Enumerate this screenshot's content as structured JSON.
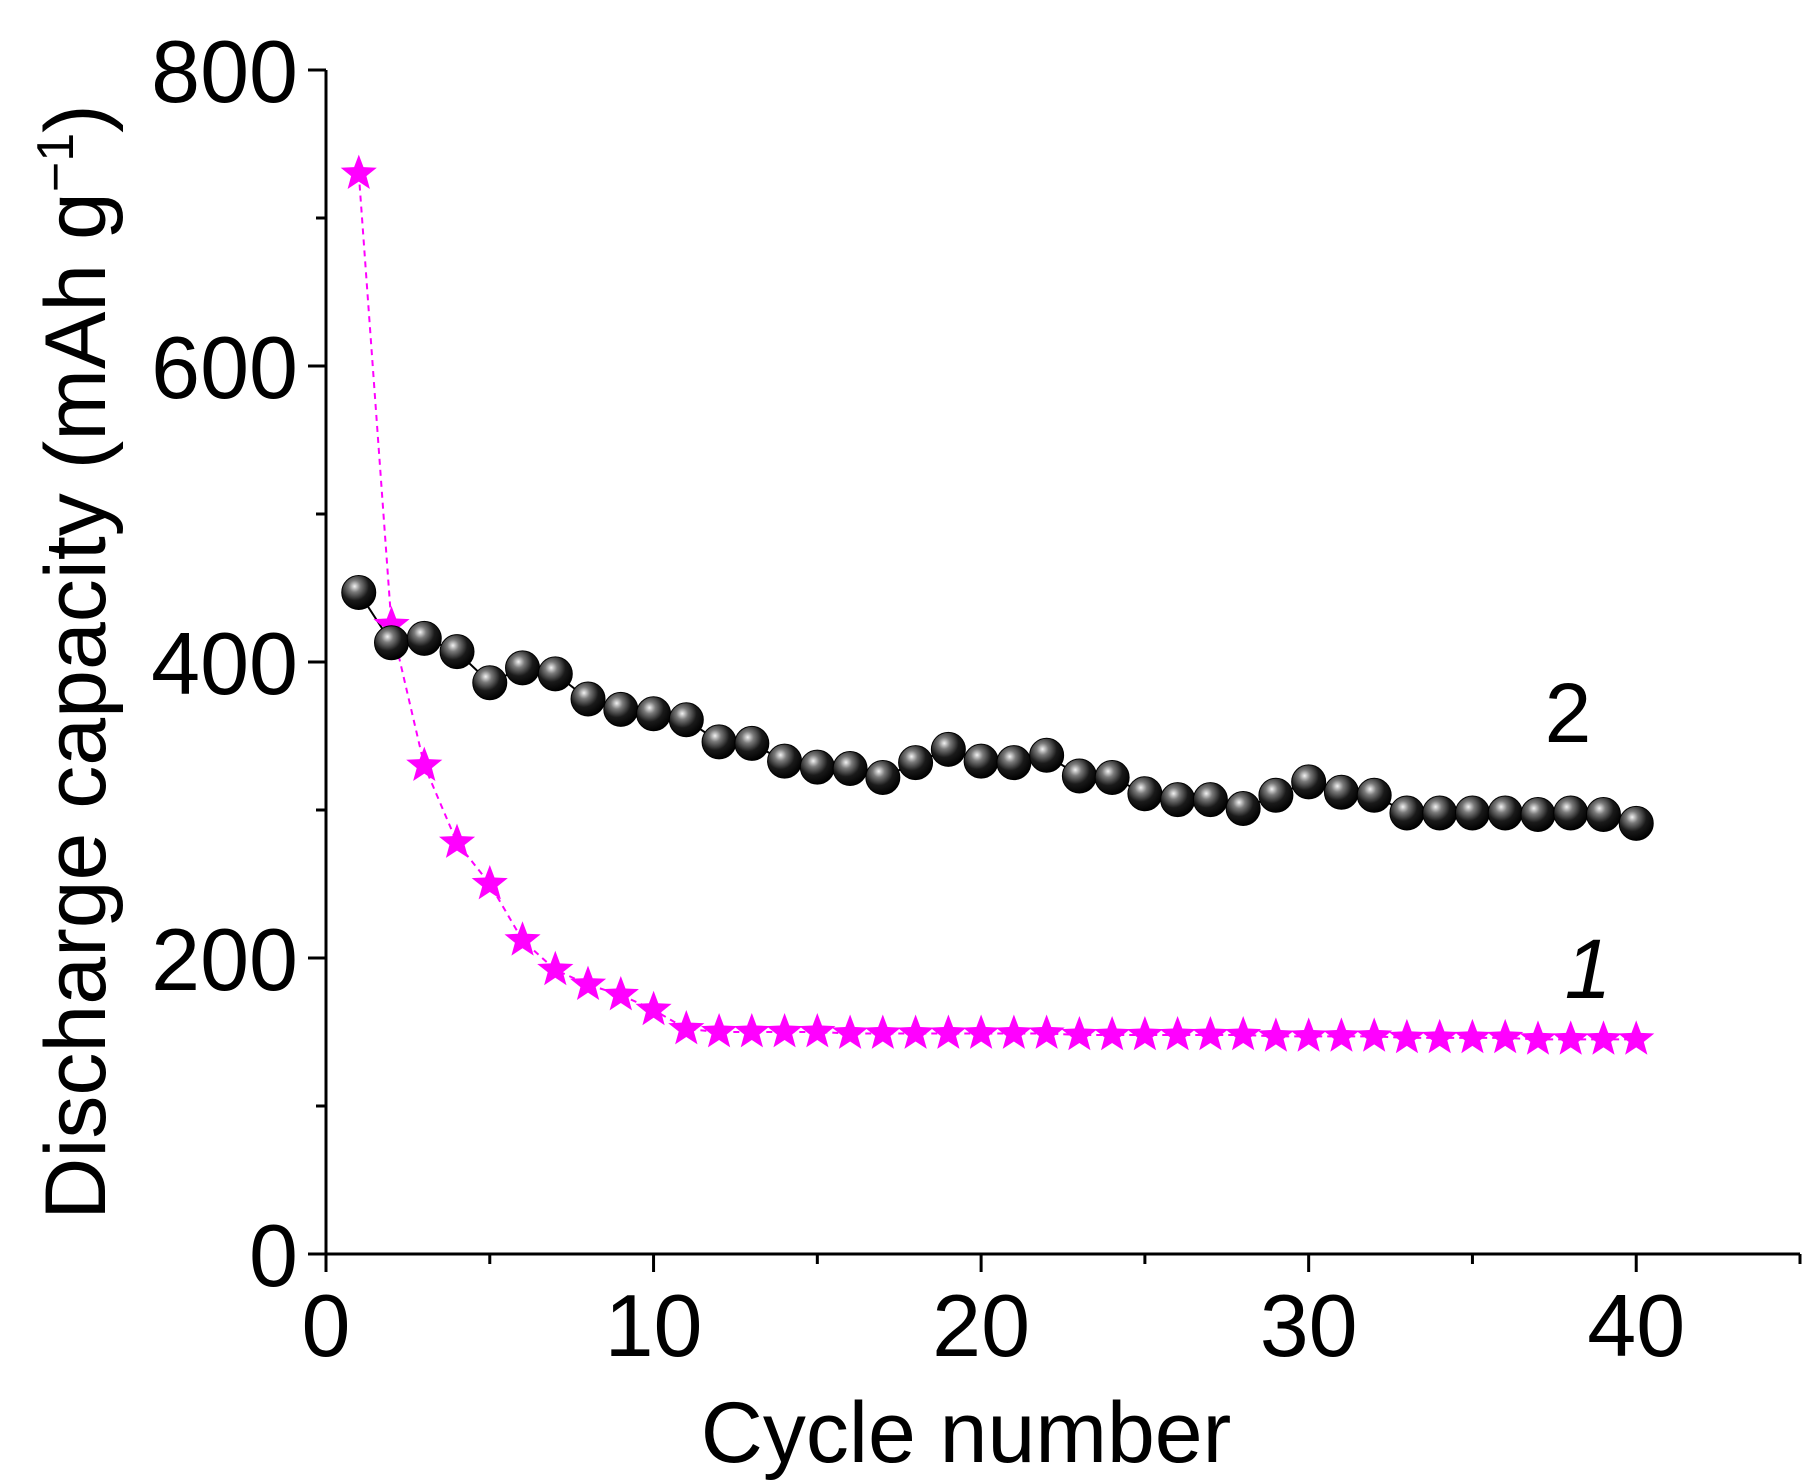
{
  "chart_data": {
    "type": "scatter",
    "title": "",
    "xlabel": "Cycle number",
    "ylabel": "Discharge capacity (mAh g",
    "ylabel_sup": "−1",
    "ylabel_close": ")",
    "xlim": [
      0,
      45
    ],
    "ylim": [
      0,
      800
    ],
    "x_ticks": [
      0,
      10,
      20,
      30,
      40
    ],
    "y_ticks": [
      0,
      200,
      400,
      600,
      800
    ],
    "grid": false,
    "series": [
      {
        "label": "1",
        "label_italic": true,
        "marker": "star",
        "color": "#ff00ff",
        "x": [
          1,
          2,
          3,
          4,
          5,
          6,
          7,
          8,
          9,
          10,
          11,
          12,
          13,
          14,
          15,
          16,
          17,
          18,
          19,
          20,
          21,
          22,
          23,
          24,
          25,
          26,
          27,
          28,
          29,
          30,
          31,
          32,
          33,
          34,
          35,
          36,
          37,
          38,
          39,
          40
        ],
        "values": [
          730,
          425,
          330,
          278,
          250,
          212,
          192,
          182,
          175,
          165,
          152,
          150,
          150,
          150,
          150,
          149,
          149,
          149,
          149,
          149,
          149,
          149,
          148,
          148,
          148,
          148,
          148,
          148,
          147,
          147,
          147,
          147,
          146,
          146,
          146,
          146,
          145,
          145,
          145,
          145
        ]
      },
      {
        "label": "2",
        "label_italic": false,
        "marker": "sphere",
        "color": "#000000",
        "x": [
          1,
          2,
          3,
          4,
          5,
          6,
          7,
          8,
          9,
          10,
          11,
          12,
          13,
          14,
          15,
          16,
          17,
          18,
          19,
          20,
          21,
          22,
          23,
          24,
          25,
          26,
          27,
          28,
          29,
          30,
          31,
          32,
          33,
          34,
          35,
          36,
          37,
          38,
          39,
          40
        ],
        "values": [
          447,
          413,
          416,
          407,
          386,
          396,
          392,
          375,
          368,
          365,
          361,
          346,
          345,
          333,
          329,
          328,
          322,
          332,
          341,
          333,
          332,
          337,
          323,
          322,
          311,
          307,
          307,
          301,
          310,
          319,
          312,
          310,
          298,
          298,
          298,
          298,
          297,
          298,
          297,
          291
        ]
      }
    ]
  }
}
